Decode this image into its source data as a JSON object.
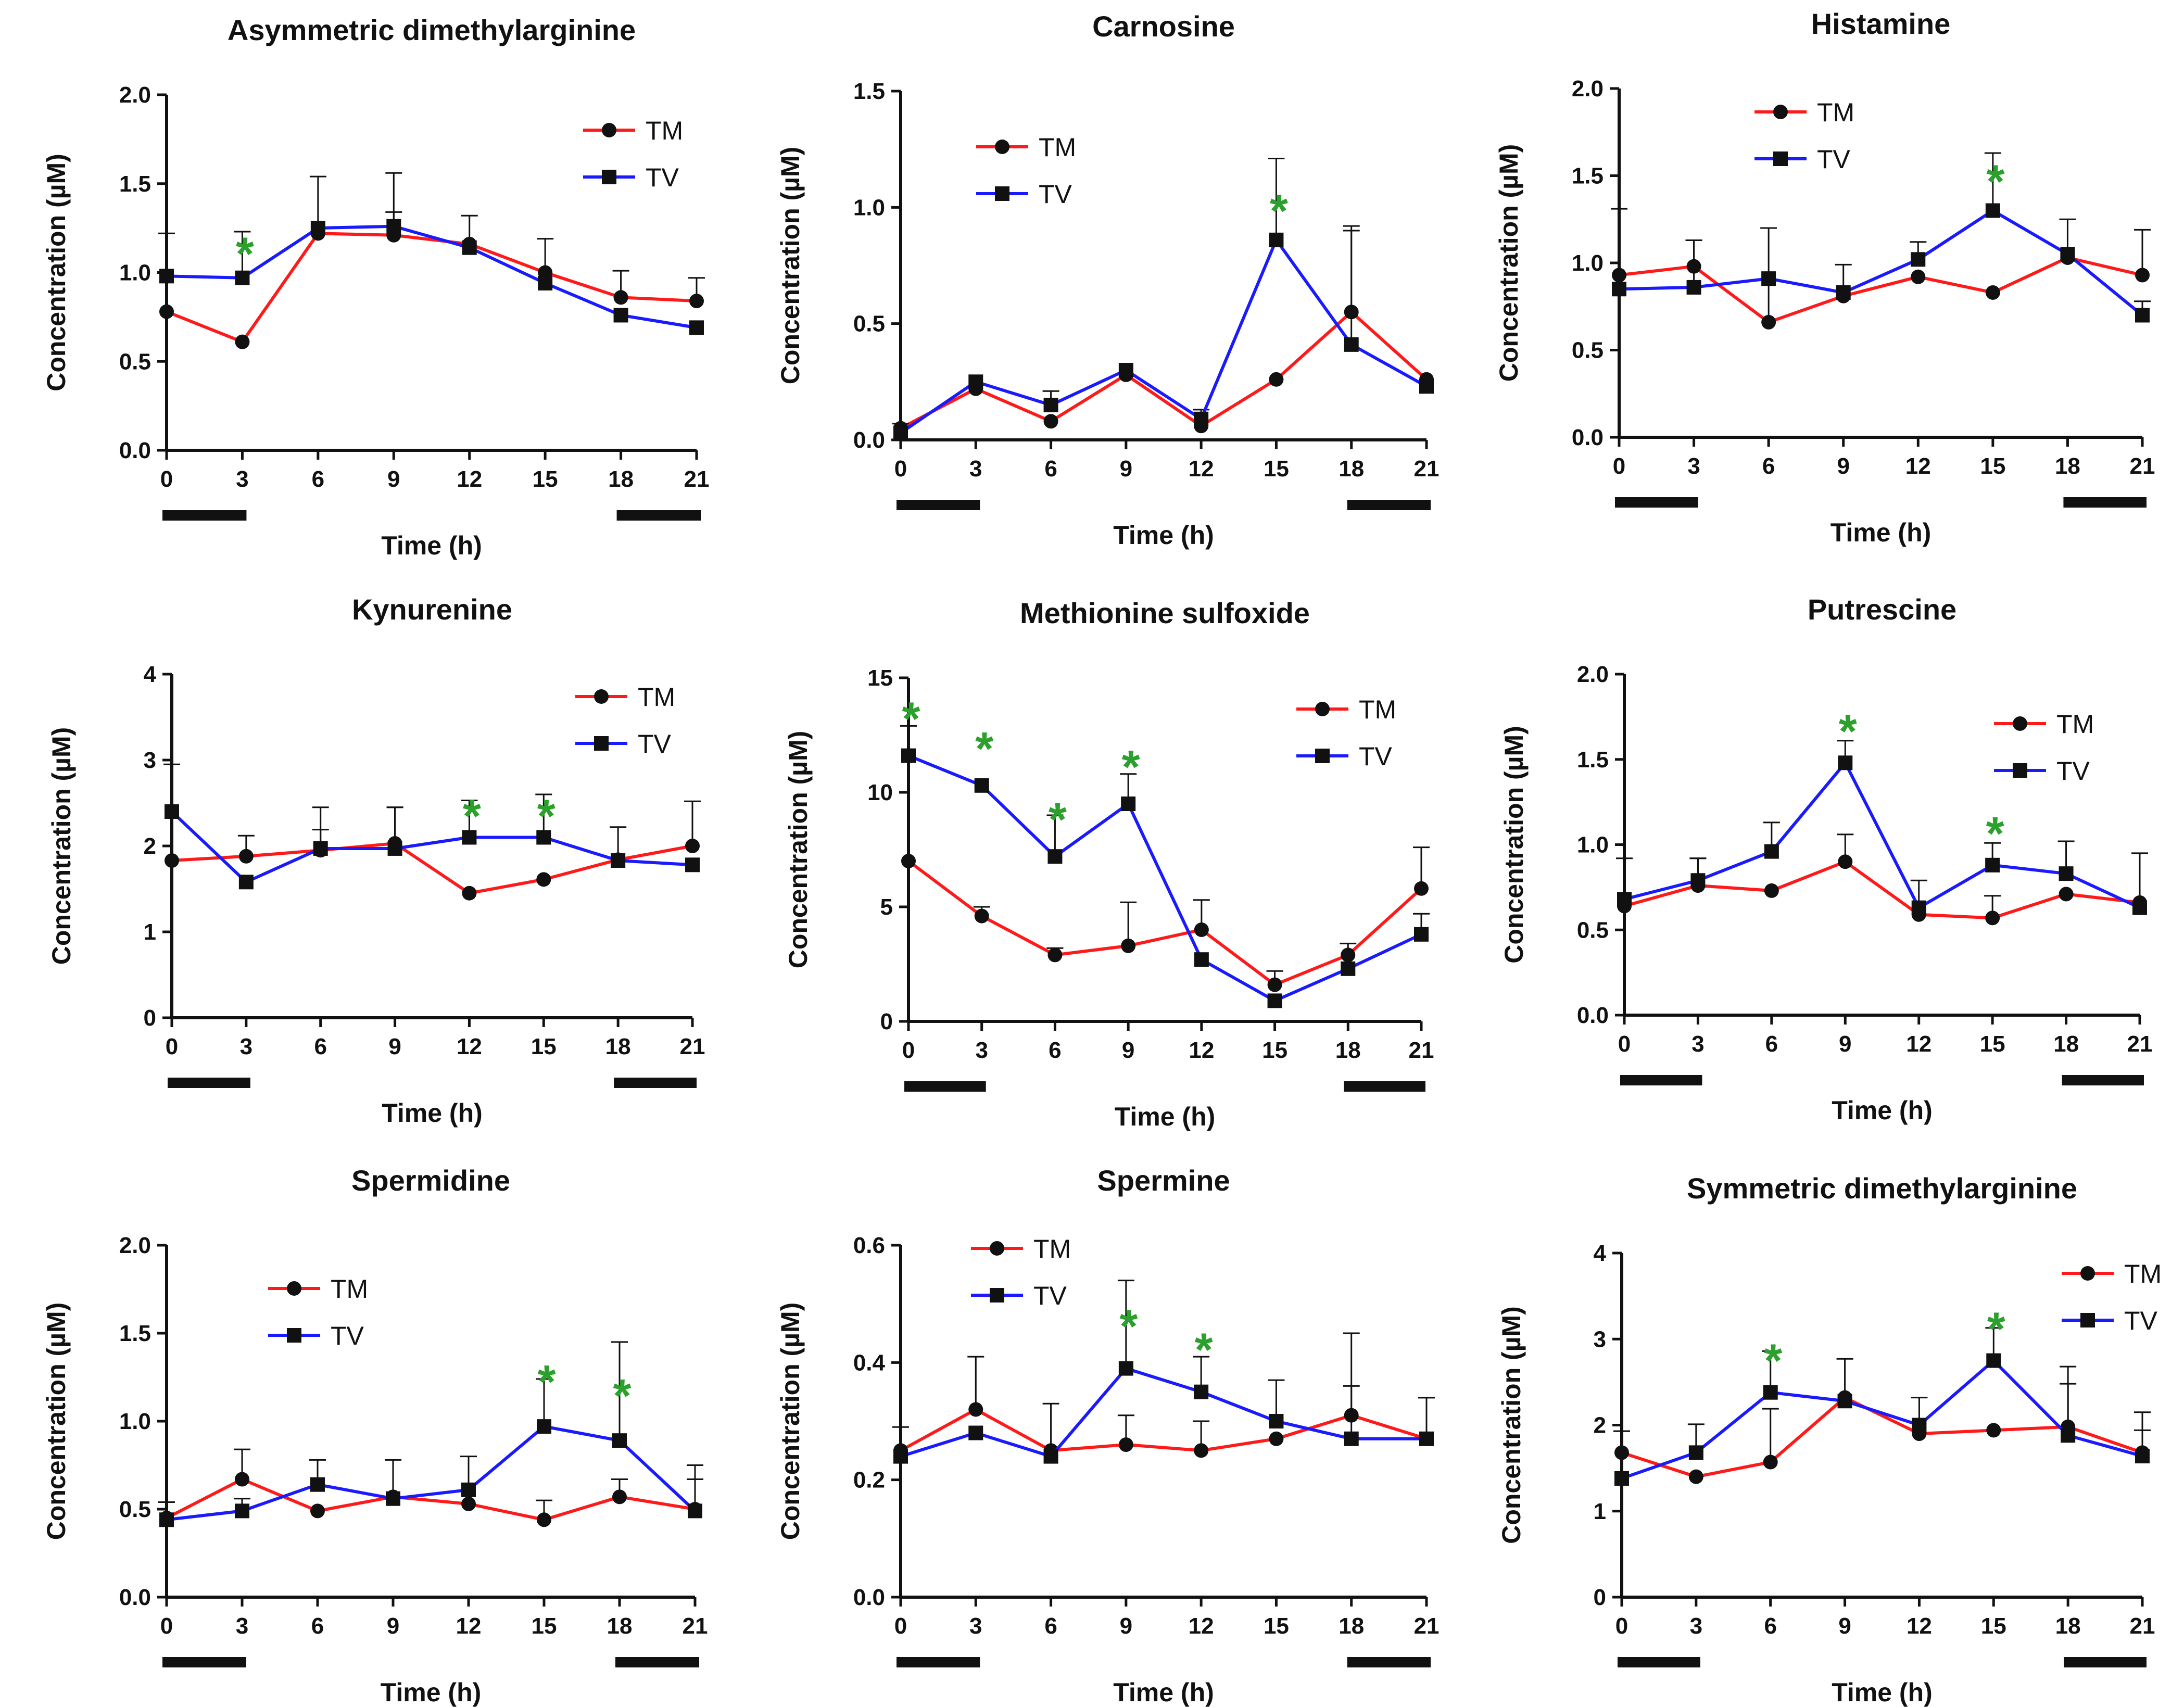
{
  "colors": {
    "TM": "#ff1a1a",
    "TV": "#1a1aff",
    "significance": "#2ca02c"
  },
  "chart_data": [
    {
      "type": "line",
      "title": "Asymmetric dimethylarginine",
      "xlabel": "Time (h)",
      "ylabel": "Concentration (µM)",
      "x": [
        0,
        3,
        6,
        9,
        12,
        15,
        18,
        21
      ],
      "ylim": [
        0,
        2.0
      ],
      "yticks": [
        "0.0",
        "0.5",
        "1.0",
        "1.5",
        "2.0"
      ],
      "legend_pos": "top-right",
      "dark_periods": [
        [
          0,
          3
        ],
        [
          18,
          21
        ]
      ],
      "series": [
        {
          "name": "TM",
          "values": [
            0.78,
            0.61,
            1.22,
            1.21,
            1.16,
            1.0,
            0.86,
            0.84
          ],
          "error": [
            0.44,
            0.0,
            0.0,
            0.13,
            0.0,
            0.19,
            0.15,
            0.13
          ]
        },
        {
          "name": "TV",
          "values": [
            0.98,
            0.97,
            1.25,
            1.26,
            1.14,
            0.94,
            0.76,
            0.69
          ],
          "error": [
            0.24,
            0.26,
            0.29,
            0.3,
            0.18,
            0.0,
            0.0,
            0.0
          ]
        }
      ],
      "significant": [
        3
      ]
    },
    {
      "type": "line",
      "title": "Carnosine",
      "xlabel": "Time (h)",
      "ylabel": "Concentration (µM)",
      "x": [
        0,
        3,
        6,
        9,
        12,
        15,
        18,
        21
      ],
      "ylim": [
        0,
        1.5
      ],
      "yticks": [
        "0.0",
        "0.5",
        "1.0",
        "1.5"
      ],
      "legend_pos": "top-left",
      "dark_periods": [
        [
          0,
          3
        ],
        [
          18,
          21
        ]
      ],
      "series": [
        {
          "name": "TM",
          "values": [
            0.05,
            0.22,
            0.08,
            0.28,
            0.06,
            0.26,
            0.55,
            0.26
          ],
          "error": [
            0.0,
            0.0,
            0.0,
            0.0,
            0.0,
            0.0,
            0.37,
            0.0
          ]
        },
        {
          "name": "TV",
          "values": [
            0.03,
            0.25,
            0.15,
            0.3,
            0.09,
            0.86,
            0.41,
            0.23
          ],
          "error": [
            0.04,
            0.0,
            0.06,
            0.0,
            0.04,
            0.35,
            0.49,
            0.0
          ]
        }
      ],
      "significant": [
        15
      ]
    },
    {
      "type": "line",
      "title": "Histamine",
      "xlabel": "Time (h)",
      "ylabel": "Concentration (µM)",
      "x": [
        0,
        3,
        6,
        9,
        12,
        15,
        18,
        21
      ],
      "ylim": [
        0,
        2.0
      ],
      "yticks": [
        "0.0",
        "0.5",
        "1.0",
        "1.5",
        "2.0"
      ],
      "legend_pos": "top-left",
      "dark_periods": [
        [
          0,
          3
        ],
        [
          18,
          21
        ]
      ],
      "series": [
        {
          "name": "TM",
          "values": [
            0.93,
            0.98,
            0.66,
            0.81,
            0.92,
            0.83,
            1.03,
            0.93
          ],
          "error": [
            0.38,
            0.15,
            0.54,
            0.18,
            0.0,
            0.0,
            0.0,
            0.26
          ]
        },
        {
          "name": "TV",
          "values": [
            0.85,
            0.86,
            0.91,
            0.83,
            1.02,
            1.3,
            1.05,
            0.7
          ],
          "error": [
            0.0,
            0.27,
            0.0,
            0.0,
            0.1,
            0.33,
            0.2,
            0.08
          ]
        }
      ],
      "significant": [
        15
      ]
    },
    {
      "type": "line",
      "title": "Kynurenine",
      "xlabel": "Time (h)",
      "ylabel": "Concentration (µM)",
      "x": [
        0,
        3,
        6,
        9,
        12,
        15,
        18,
        21
      ],
      "ylim": [
        0,
        4
      ],
      "yticks": [
        "0",
        "1",
        "2",
        "3",
        "4"
      ],
      "legend_pos": "top-right",
      "dark_periods": [
        [
          0,
          3
        ],
        [
          18,
          21
        ]
      ],
      "series": [
        {
          "name": "TM",
          "values": [
            1.83,
            1.88,
            1.95,
            2.03,
            1.45,
            1.61,
            1.84,
            2.0
          ],
          "error": [
            0.0,
            0.24,
            0.5,
            0.42,
            0.0,
            0.0,
            0.38,
            0.52
          ]
        },
        {
          "name": "TV",
          "values": [
            2.4,
            1.58,
            1.97,
            1.97,
            2.1,
            2.1,
            1.83,
            1.78
          ],
          "error": [
            0.55,
            0.0,
            0.22,
            0.48,
            0.43,
            0.5,
            0.0,
            0.0
          ]
        }
      ],
      "significant": [
        12,
        15
      ]
    },
    {
      "type": "line",
      "title": "Methionine sulfoxide",
      "xlabel": "Time (h)",
      "ylabel": "Concentration (µM)",
      "x": [
        0,
        3,
        6,
        9,
        12,
        15,
        18,
        21
      ],
      "ylim": [
        0,
        15
      ],
      "yticks": [
        "0",
        "5",
        "10",
        "15"
      ],
      "legend_pos": "top-right",
      "dark_periods": [
        [
          0,
          3
        ],
        [
          18,
          21
        ]
      ],
      "series": [
        {
          "name": "TM",
          "values": [
            7.0,
            4.6,
            2.9,
            3.3,
            4.0,
            1.6,
            2.9,
            5.8
          ],
          "error": [
            0.0,
            0.4,
            0.3,
            1.9,
            1.3,
            0.6,
            0.5,
            1.8
          ]
        },
        {
          "name": "TV",
          "values": [
            11.6,
            10.3,
            7.2,
            9.5,
            2.7,
            0.9,
            2.3,
            3.8
          ],
          "error": [
            1.3,
            0.0,
            1.8,
            1.3,
            0.0,
            0.0,
            0.0,
            0.9
          ]
        }
      ],
      "significant": [
        0,
        3,
        6,
        9
      ]
    },
    {
      "type": "line",
      "title": "Putrescine",
      "xlabel": "Time (h)",
      "ylabel": "Concentration (µM)",
      "x": [
        0,
        3,
        6,
        9,
        12,
        15,
        18,
        21
      ],
      "ylim": [
        0,
        2.0
      ],
      "yticks": [
        "0.0",
        "0.5",
        "1.0",
        "1.5",
        "2.0"
      ],
      "legend_pos": "top-right",
      "dark_periods": [
        [
          0,
          3
        ],
        [
          18,
          21
        ]
      ],
      "series": [
        {
          "name": "TM",
          "values": [
            0.64,
            0.76,
            0.73,
            0.9,
            0.59,
            0.57,
            0.71,
            0.66
          ],
          "error": [
            0.28,
            0.16,
            0.0,
            0.16,
            0.0,
            0.13,
            0.0,
            0.29
          ]
        },
        {
          "name": "TV",
          "values": [
            0.68,
            0.79,
            0.96,
            1.48,
            0.63,
            0.88,
            0.83,
            0.63
          ],
          "error": [
            0.0,
            0.13,
            0.17,
            0.13,
            0.16,
            0.13,
            0.19,
            0.0
          ]
        }
      ],
      "significant": [
        9,
        15
      ]
    },
    {
      "type": "line",
      "title": "Spermidine",
      "xlabel": "Time (h)",
      "ylabel": "Concentration (µM)",
      "x": [
        0,
        3,
        6,
        9,
        12,
        15,
        18,
        21
      ],
      "ylim": [
        0,
        2.0
      ],
      "yticks": [
        "0.0",
        "0.5",
        "1.0",
        "1.5",
        "2.0"
      ],
      "legend_pos": "top-center",
      "dark_periods": [
        [
          0,
          3
        ],
        [
          18,
          21
        ]
      ],
      "series": [
        {
          "name": "TM",
          "values": [
            0.45,
            0.67,
            0.49,
            0.57,
            0.53,
            0.44,
            0.57,
            0.5
          ],
          "error": [
            0.09,
            0.17,
            0.0,
            0.21,
            0.0,
            0.11,
            0.1,
            0.17
          ]
        },
        {
          "name": "TV",
          "values": [
            0.44,
            0.49,
            0.64,
            0.56,
            0.61,
            0.97,
            0.89,
            0.49
          ],
          "error": [
            0.0,
            0.07,
            0.14,
            0.0,
            0.19,
            0.27,
            0.56,
            0.26
          ]
        }
      ],
      "significant": [
        15,
        18
      ]
    },
    {
      "type": "line",
      "title": "Spermine",
      "xlabel": "Time (h)",
      "ylabel": "Concentration (µM)",
      "x": [
        0,
        3,
        6,
        9,
        12,
        15,
        18,
        21
      ],
      "ylim": [
        0,
        0.6
      ],
      "yticks": [
        "0.0",
        "0.2",
        "0.4",
        "0.6"
      ],
      "legend_pos": "top-left",
      "dark_periods": [
        [
          0,
          3
        ],
        [
          18,
          21
        ]
      ],
      "series": [
        {
          "name": "TM",
          "values": [
            0.25,
            0.32,
            0.25,
            0.26,
            0.25,
            0.27,
            0.31,
            0.27
          ],
          "error": [
            0.0,
            0.09,
            0.08,
            0.05,
            0.05,
            0.0,
            0.14,
            0.07
          ]
        },
        {
          "name": "TV",
          "values": [
            0.24,
            0.28,
            0.24,
            0.39,
            0.35,
            0.3,
            0.27,
            0.27
          ],
          "error": [
            0.05,
            0.0,
            0.0,
            0.15,
            0.06,
            0.07,
            0.09,
            0.0
          ]
        }
      ],
      "significant": [
        9,
        12
      ]
    },
    {
      "type": "line",
      "title": "Symmetric dimethylarginine",
      "xlabel": "Time (h)",
      "ylabel": "Concentration (µM)",
      "x": [
        0,
        3,
        6,
        9,
        12,
        15,
        18,
        21
      ],
      "ylim": [
        0,
        4
      ],
      "yticks": [
        "0",
        "1",
        "2",
        "3",
        "4"
      ],
      "legend_pos": "top-right",
      "dark_periods": [
        [
          0,
          3
        ],
        [
          18,
          21
        ]
      ],
      "series": [
        {
          "name": "TM",
          "values": [
            1.68,
            1.4,
            1.57,
            2.32,
            1.9,
            1.94,
            1.98,
            1.68
          ],
          "error": [
            0.25,
            0.0,
            0.62,
            0.45,
            0.0,
            0.0,
            0.7,
            0.47
          ]
        },
        {
          "name": "TV",
          "values": [
            1.38,
            1.68,
            2.38,
            2.28,
            2.0,
            2.75,
            1.88,
            1.64
          ],
          "error": [
            0.55,
            0.33,
            0.48,
            0.0,
            0.32,
            0.38,
            0.6,
            0.3
          ]
        }
      ],
      "significant": [
        6,
        15
      ]
    }
  ]
}
